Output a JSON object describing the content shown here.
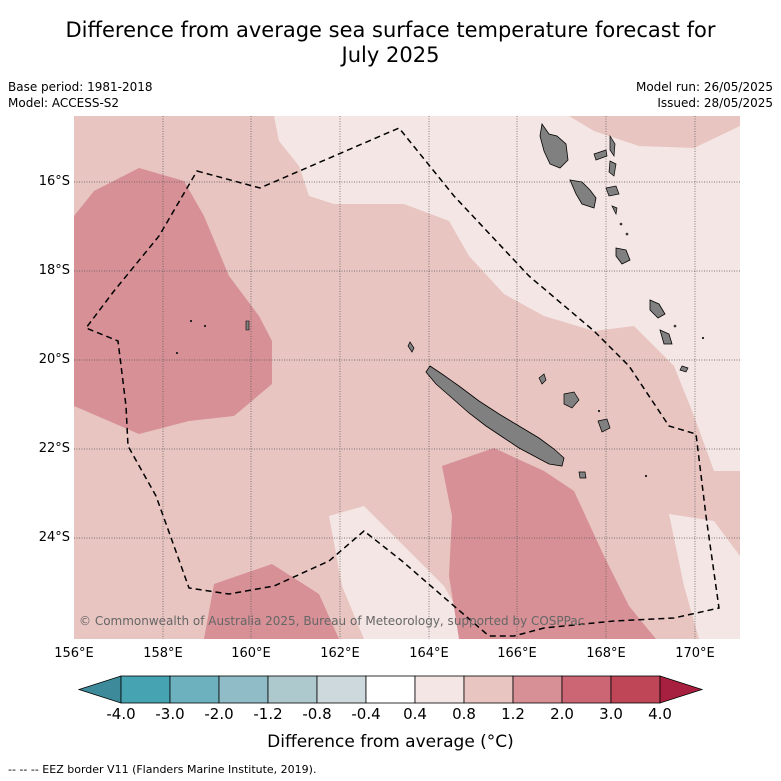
{
  "title_line1": "Difference from average sea surface temperature forecast for",
  "title_line2": "July 2025",
  "base_period": "Base period: 1981-2018",
  "model": "Model: ACCESS-S2",
  "model_run": "Model run: 26/05/2025",
  "issued": "Issued: 28/05/2025",
  "lat_labels": [
    "16°S",
    "18°S",
    "20°S",
    "22°S",
    "24°S"
  ],
  "lon_labels": [
    "156°E",
    "158°E",
    "160°E",
    "162°E",
    "164°E",
    "166°E",
    "168°E",
    "170°E"
  ],
  "copyright": "© Commonwealth of Australia 2025, Bureau of Meteorology, supported by COSPPac",
  "colorbar": {
    "title": "Difference from average (°C)",
    "ticks": [
      "-4.0",
      "-3.0",
      "-2.0",
      "-1.2",
      "-0.8",
      "-0.4",
      "0.4",
      "0.8",
      "1.2",
      "2.0",
      "3.0",
      "4.0"
    ],
    "colors": [
      "#3d8b9a",
      "#45a3b2",
      "#6db0be",
      "#8fbcc7",
      "#aec9cd",
      "#cdd9dc",
      "#ffffff",
      "#f4e6e4",
      "#e8c5c1",
      "#d69096",
      "#cd6674",
      "#bf4657",
      "#a82040"
    ]
  },
  "footer": "--  --  -- EEZ border V11 (Flanders Marine Institute, 2019).",
  "legend_colors": {
    "light": "#f4e6e4",
    "mid": "#e8c5c1",
    "strong": "#d69096",
    "land": "#808080"
  }
}
